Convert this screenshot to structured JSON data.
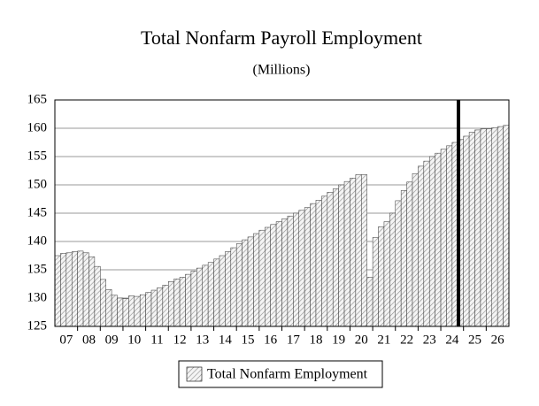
{
  "chart_data": {
    "type": "bar",
    "title": "Total Nonfarm Payroll Employment",
    "subtitle": "(Millions)",
    "categories": [
      "07",
      "08",
      "09",
      "10",
      "11",
      "12",
      "13",
      "14",
      "15",
      "16",
      "17",
      "18",
      "19",
      "20",
      "21",
      "22",
      "23",
      "24",
      "25",
      "26"
    ],
    "series": [
      {
        "name": "Total Nonfarm Employment",
        "color": "#8c8c8c",
        "values": [
          [
            137.5,
            137.9,
            138.0,
            138.2
          ],
          [
            138.3,
            138.0,
            137.3,
            135.6
          ],
          [
            133.3,
            131.5,
            130.5,
            130.0
          ],
          [
            129.9,
            130.4,
            130.3,
            130.6
          ],
          [
            131.0,
            131.4,
            131.8,
            132.3
          ],
          [
            132.9,
            133.4,
            133.7,
            134.2
          ],
          [
            134.8,
            135.3,
            135.8,
            136.3
          ],
          [
            136.9,
            137.5,
            138.2,
            138.9
          ],
          [
            139.6,
            140.3,
            140.8,
            141.4
          ],
          [
            142.0,
            142.5,
            143.0,
            143.5
          ],
          [
            144.0,
            144.5,
            145.0,
            145.5
          ],
          [
            146.0,
            146.7,
            147.3,
            148.0
          ],
          [
            148.7,
            149.3,
            150.0,
            150.6
          ],
          [
            151.2,
            151.8,
            151.8,
            133.7
          ],
          [
            140.7,
            142.6,
            143.5,
            145.0
          ],
          [
            147.2,
            149.0,
            150.5,
            152.0
          ],
          [
            153.3,
            154.2,
            155.0,
            155.6
          ],
          [
            156.3,
            156.9,
            157.5,
            158.0
          ],
          [
            158.6,
            159.3,
            159.7,
            159.9
          ],
          [
            159.9,
            160.1,
            160.3,
            160.5
          ]
        ]
      }
    ],
    "ylim": [
      125,
      165
    ],
    "yticks": [
      125,
      130,
      135,
      140,
      145,
      150,
      155,
      160,
      165
    ],
    "grid": true
  }
}
